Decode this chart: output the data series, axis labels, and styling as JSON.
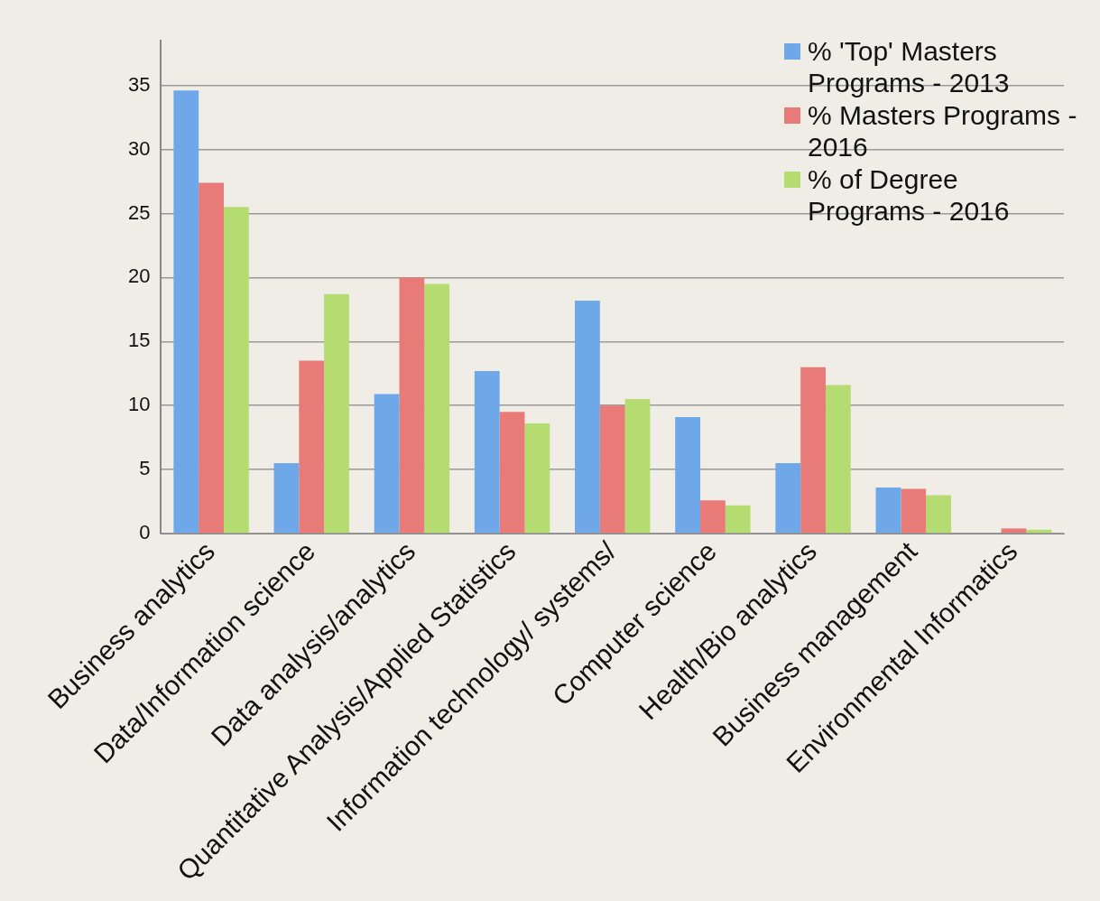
{
  "chart_data": {
    "type": "bar",
    "categories": [
      "Business analytics",
      "Data/Information science",
      "Data analysis/analytics",
      "Quantitative Analysis/Applied Statistics",
      "Information technology/ systems/",
      "Computer science",
      "Health/Bio analytics",
      "Business management",
      "Environmental Informatics"
    ],
    "series": [
      {
        "name": "% 'Top' Masters Programs - 2013",
        "color": "#6fa8e8",
        "values": [
          34.6,
          5.5,
          10.9,
          12.7,
          18.2,
          9.1,
          5.5,
          3.6,
          0
        ]
      },
      {
        "name": "% Masters Programs - 2016",
        "color": "#e87a78",
        "values": [
          27.4,
          13.5,
          20.0,
          9.5,
          10.0,
          2.6,
          13.0,
          3.5,
          0.4
        ]
      },
      {
        "name": "% of Degree Programs - 2016",
        "color": "#b5dc70",
        "values": [
          25.5,
          18.7,
          19.5,
          8.6,
          10.5,
          2.2,
          11.6,
          3.0,
          0.3
        ]
      }
    ],
    "ylim": [
      0,
      38.5
    ],
    "yticks": [
      0,
      5,
      10,
      15,
      20,
      25,
      30,
      35
    ],
    "grid": "y",
    "legend": "top right"
  }
}
